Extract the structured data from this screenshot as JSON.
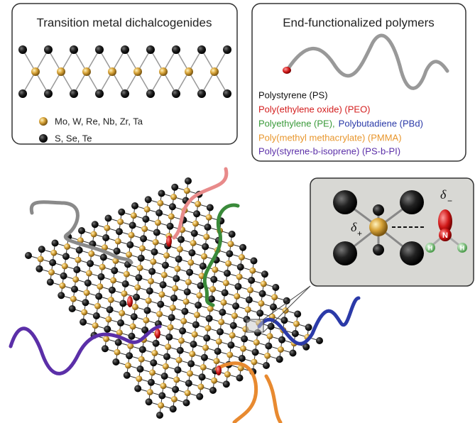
{
  "panels": {
    "tmd": {
      "title": "Transition metal dichalcogenides",
      "legend": [
        "Mo, W, Re, Nb, Zr, Ta",
        "S, Se, Te"
      ]
    },
    "polymers": {
      "title": "End-functionalized polymers",
      "list": [
        "Polystyrene (PS)",
        "Poly(ethylene oxide) (PEO)",
        "Polyethylene (PE),",
        "Polybutadiene (PBd)",
        "Poly(methyl methacrylate) (PMMA)",
        "Poly(styrene-b-isoprene) (PS-b-PI)"
      ]
    }
  },
  "inset": {
    "delta_plus": {
      "symbol": "δ",
      "sign": "+"
    },
    "delta_minus": {
      "symbol": "δ",
      "sign": "−"
    },
    "atoms": [
      "N",
      "H",
      "H"
    ]
  }
}
